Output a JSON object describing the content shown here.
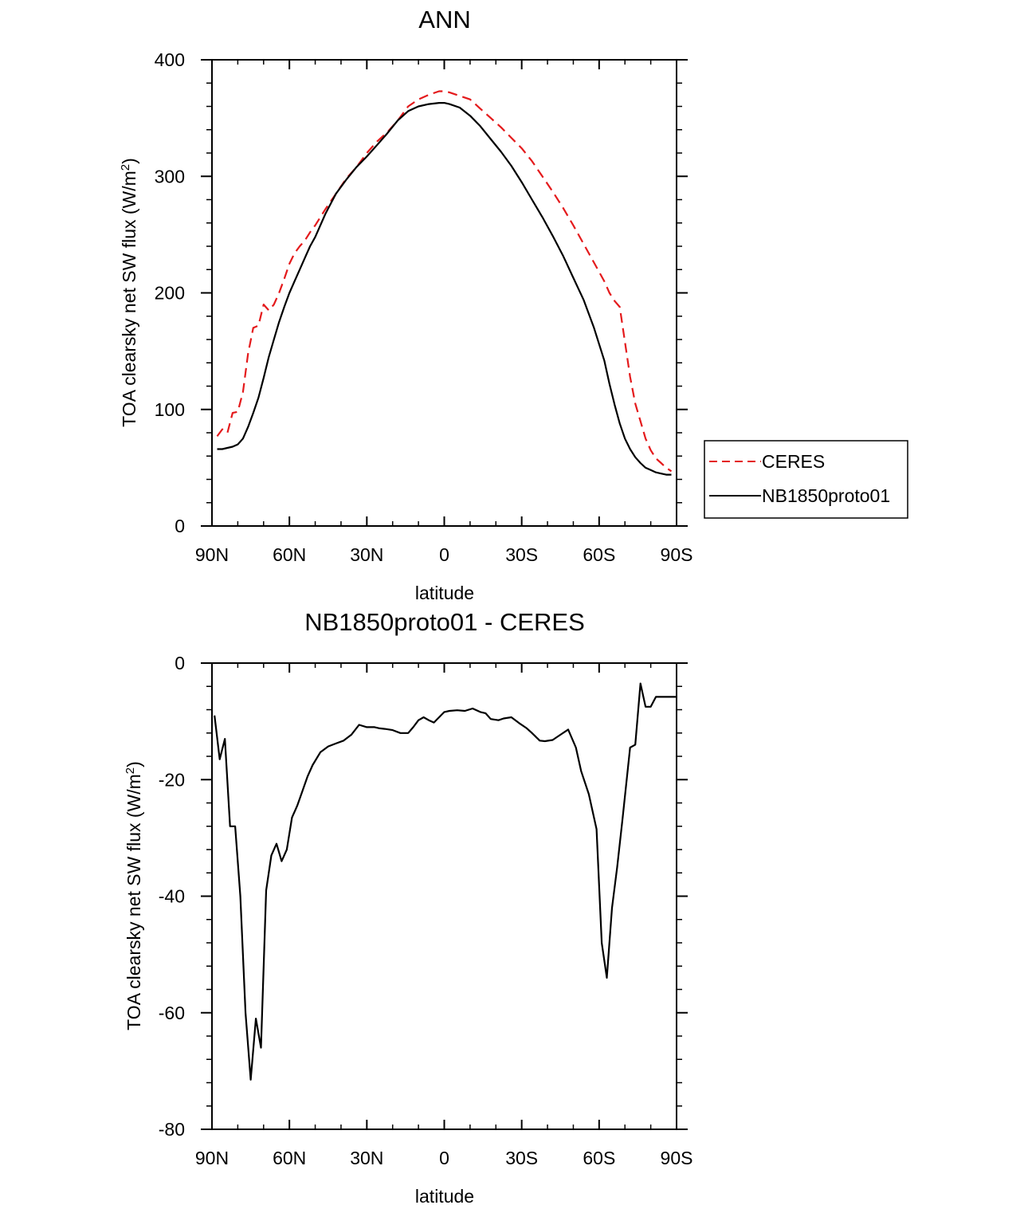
{
  "chart_data": [
    {
      "type": "line",
      "title": "ANN",
      "xlabel": "latitude",
      "ylabel": "TOA clearsky net SW flux (W/m",
      "ylabel_sup": "2",
      "ylabel_close": ")",
      "xlim": [
        90,
        -90
      ],
      "ylim": [
        0,
        400
      ],
      "x_ticks": [
        {
          "value": 90,
          "label": "90N"
        },
        {
          "value": 60,
          "label": "60N"
        },
        {
          "value": 30,
          "label": "30N"
        },
        {
          "value": 0,
          "label": "0"
        },
        {
          "value": -30,
          "label": "30S"
        },
        {
          "value": -60,
          "label": "60S"
        },
        {
          "value": -90,
          "label": "90S"
        }
      ],
      "y_ticks": [
        {
          "value": 0,
          "label": "0"
        },
        {
          "value": 100,
          "label": "100"
        },
        {
          "value": 200,
          "label": "200"
        },
        {
          "value": 300,
          "label": "300"
        },
        {
          "value": 400,
          "label": "400"
        }
      ],
      "legend": "right",
      "series": [
        {
          "name": "CERES",
          "color": "#e41a1c",
          "style": "dashed",
          "x": [
            88,
            86,
            84,
            82,
            80,
            78,
            76,
            74,
            72,
            70,
            68,
            66,
            64,
            62,
            60,
            58,
            56,
            54,
            52,
            50,
            46,
            42,
            38,
            34,
            30,
            26,
            22,
            18,
            14,
            10,
            6,
            2,
            0,
            -2,
            -6,
            -10,
            -14,
            -18,
            -22,
            -26,
            -30,
            -34,
            -38,
            -42,
            -46,
            -50,
            -54,
            -58,
            -62,
            -64,
            -66,
            -68,
            -70,
            -72,
            -74,
            -76,
            -78,
            -80,
            -82,
            -84,
            -86,
            -88
          ],
          "y": [
            77,
            83,
            80,
            97,
            98,
            115,
            148,
            170,
            172,
            190,
            185,
            190,
            200,
            212,
            225,
            234,
            240,
            245,
            252,
            258,
            272,
            285,
            298,
            308,
            320,
            330,
            338,
            348,
            360,
            366,
            370,
            373,
            373,
            372,
            369,
            366,
            358,
            350,
            342,
            333,
            324,
            313,
            300,
            287,
            273,
            258,
            242,
            226,
            210,
            200,
            193,
            188,
            158,
            128,
            105,
            90,
            75,
            65,
            58,
            54,
            50,
            47
          ]
        },
        {
          "name": "NB1850proto01",
          "color": "#000000",
          "style": "solid",
          "x": [
            88,
            86,
            84,
            82,
            80,
            78,
            76,
            74,
            72,
            70,
            68,
            66,
            64,
            62,
            60,
            58,
            56,
            54,
            52,
            50,
            46,
            42,
            38,
            34,
            30,
            26,
            22,
            18,
            14,
            10,
            6,
            2,
            0,
            -2,
            -6,
            -10,
            -14,
            -18,
            -22,
            -26,
            -30,
            -34,
            -38,
            -42,
            -46,
            -50,
            -54,
            -58,
            -62,
            -64,
            -66,
            -68,
            -70,
            -72,
            -74,
            -76,
            -78,
            -80,
            -82,
            -84,
            -86,
            -88
          ],
          "y": [
            66,
            66,
            67,
            68,
            70,
            75,
            85,
            97,
            110,
            127,
            145,
            160,
            175,
            188,
            200,
            210,
            220,
            230,
            240,
            248,
            268,
            285,
            297,
            308,
            317,
            327,
            337,
            348,
            356,
            360,
            362,
            363,
            363,
            362,
            359,
            352,
            343,
            332,
            321,
            309,
            295,
            280,
            265,
            249,
            232,
            213,
            194,
            170,
            142,
            122,
            104,
            88,
            75,
            66,
            59,
            54,
            50,
            48,
            46,
            45,
            44,
            44
          ]
        }
      ]
    },
    {
      "type": "line",
      "title": "NB1850proto01 - CERES",
      "xlabel": "latitude",
      "ylabel": "TOA clearsky net SW flux (W/m",
      "ylabel_sup": "2",
      "ylabel_close": ")",
      "xlim": [
        90,
        -90
      ],
      "ylim": [
        -80,
        0
      ],
      "x_ticks": [
        {
          "value": 90,
          "label": "90N"
        },
        {
          "value": 60,
          "label": "60N"
        },
        {
          "value": 30,
          "label": "30N"
        },
        {
          "value": 0,
          "label": "0"
        },
        {
          "value": -30,
          "label": "30S"
        },
        {
          "value": -60,
          "label": "60S"
        },
        {
          "value": -90,
          "label": "90S"
        }
      ],
      "y_ticks": [
        {
          "value": 0,
          "label": "0"
        },
        {
          "value": -20,
          "label": "-20"
        },
        {
          "value": -40,
          "label": "-40"
        },
        {
          "value": -60,
          "label": "-60"
        },
        {
          "value": -80,
          "label": "-80"
        }
      ],
      "series": [
        {
          "name": "NB1850proto01 - CERES",
          "color": "#000000",
          "style": "solid",
          "x": [
            89,
            87,
            85,
            83,
            81,
            79,
            77,
            75,
            73,
            71,
            69,
            67,
            65,
            63,
            61,
            59,
            57,
            55,
            53,
            51,
            48,
            45,
            42,
            39,
            36,
            33,
            30,
            27,
            25,
            23,
            20,
            17,
            14,
            12,
            10,
            8,
            6,
            4,
            2,
            0,
            -2,
            -5,
            -8,
            -11,
            -14,
            -16,
            -18,
            -21,
            -23,
            -26,
            -29,
            -32,
            -34,
            -37,
            -39,
            -42,
            -45,
            -48,
            -51,
            -53,
            -56,
            -59,
            -61,
            -63,
            -65,
            -67,
            -69,
            -72,
            -74,
            -76,
            -78,
            -80,
            -82,
            -84,
            -86,
            -88,
            -90
          ],
          "y": [
            -9,
            -16.5,
            -13,
            -28,
            -28,
            -40,
            -60,
            -71.5,
            -61,
            -66,
            -39,
            -33,
            -31,
            -34,
            -32,
            -26.5,
            -24.5,
            -22,
            -19.5,
            -17.5,
            -15.3,
            -14.3,
            -13.8,
            -13.3,
            -12.3,
            -10.6,
            -11,
            -11,
            -11.2,
            -11.3,
            -11.5,
            -12,
            -12,
            -11,
            -9.8,
            -9.3,
            -9.8,
            -10.2,
            -9.3,
            -8.4,
            -8.2,
            -8.1,
            -8.2,
            -7.8,
            -8.4,
            -8.6,
            -9.6,
            -9.8,
            -9.5,
            -9.3,
            -10.3,
            -11.2,
            -12,
            -13.3,
            -13.4,
            -13.2,
            -12.3,
            -11.4,
            -14.5,
            -18.5,
            -22.5,
            -28.5,
            -48,
            -54,
            -42,
            -35,
            -27,
            -14.5,
            -14,
            -3.5,
            -7.5,
            -7.5,
            -5.8,
            -5.8,
            -5.8,
            -5.8,
            -5.8
          ]
        }
      ]
    }
  ]
}
